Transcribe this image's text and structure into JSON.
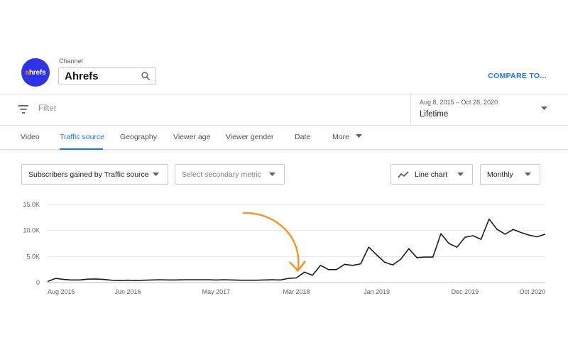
{
  "channel": {
    "label": "Channel",
    "name": "Ahrefs",
    "logo_text": "ahrefs",
    "logo_color": "#2f33e6"
  },
  "compare_label": "COMPARE TO...",
  "filter": {
    "placeholder": "Filter"
  },
  "date": {
    "range": "Aug 8, 2015 – Oct 28, 2020",
    "selected": "Lifetime"
  },
  "tabs": [
    {
      "label": "Video",
      "active": false
    },
    {
      "label": "Traffic source",
      "active": true
    },
    {
      "label": "Geography",
      "active": false
    },
    {
      "label": "Viewer age",
      "active": false
    },
    {
      "label": "Viewer gender",
      "active": false
    },
    {
      "label": "Date",
      "active": false
    },
    {
      "label": "More",
      "active": false
    }
  ],
  "controls": {
    "metric": "Subscribers gained by Traffic source",
    "secondary_metric": "Select secondary metric",
    "chart_type": "Line chart",
    "interval": "Monthly"
  },
  "colors": {
    "accent": "#1a73e8",
    "line": "#1c1c1c",
    "annotation": "#f7931e"
  },
  "chart_data": {
    "type": "line",
    "ylim": [
      0,
      15000
    ],
    "y_ticks": [
      {
        "value": 0,
        "label": "0"
      },
      {
        "value": 5000,
        "label": "5.0K"
      },
      {
        "value": 10000,
        "label": "10.0K"
      },
      {
        "value": 15000,
        "label": "15.0K"
      }
    ],
    "x_ticks": [
      "Aug 2015",
      "Jun 2016",
      "May 2017",
      "Mar 2018",
      "Jan 2019",
      "Dec 2019",
      "Oct 2020"
    ],
    "x_tick_index": [
      0,
      10,
      21,
      31,
      41,
      52,
      62
    ],
    "values": [
      200,
      800,
      600,
      500,
      500,
      650,
      700,
      600,
      450,
      400,
      450,
      400,
      450,
      500,
      550,
      500,
      500,
      550,
      550,
      550,
      550,
      500,
      550,
      500,
      450,
      450,
      450,
      500,
      550,
      500,
      800,
      900,
      2000,
      1400,
      3300,
      2500,
      2500,
      3500,
      3300,
      3600,
      6800,
      5300,
      3900,
      3400,
      4500,
      6500,
      4800,
      4900,
      4900,
      9400,
      7500,
      6800,
      8700,
      9000,
      8300,
      12200,
      10200,
      9300,
      10200,
      9600,
      9100,
      8800,
      9300
    ],
    "annotation": "arrow pointing to Mar 2018"
  }
}
